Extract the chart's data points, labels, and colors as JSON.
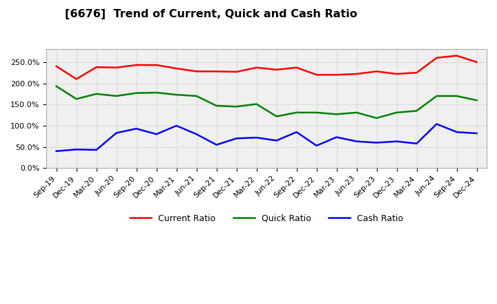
{
  "title": "[6676]  Trend of Current, Quick and Cash Ratio",
  "labels": [
    "Sep-19",
    "Dec-19",
    "Mar-20",
    "Jun-20",
    "Sep-20",
    "Dec-20",
    "Mar-21",
    "Jun-21",
    "Sep-21",
    "Dec-21",
    "Mar-22",
    "Jun-22",
    "Sep-22",
    "Dec-22",
    "Mar-23",
    "Jun-23",
    "Sep-23",
    "Dec-23",
    "Mar-24",
    "Jun-24",
    "Sep-24",
    "Dec-24"
  ],
  "current_ratio": [
    240,
    210,
    238,
    237,
    243,
    243,
    235,
    228,
    228,
    227,
    237,
    232,
    237,
    220,
    220,
    222,
    228,
    222,
    225,
    260,
    265,
    250
  ],
  "quick_ratio": [
    193,
    163,
    175,
    170,
    177,
    178,
    173,
    170,
    147,
    145,
    151,
    122,
    131,
    131,
    127,
    131,
    118,
    131,
    135,
    170,
    170,
    160
  ],
  "cash_ratio": [
    40,
    44,
    43,
    83,
    93,
    80,
    100,
    80,
    55,
    70,
    72,
    65,
    85,
    53,
    73,
    63,
    60,
    63,
    58,
    104,
    85,
    82
  ],
  "current_color": "#ff0000",
  "quick_color": "#008000",
  "cash_color": "#0000ff",
  "ylim": [
    0,
    280
  ],
  "yticks": [
    0,
    50,
    100,
    150,
    200,
    250
  ],
  "background_color": "#ffffff",
  "plot_bg_color": "#f0f0f0",
  "grid_color": "#bbbbbb",
  "legend_labels": [
    "Current Ratio",
    "Quick Ratio",
    "Cash Ratio"
  ],
  "line_width": 1.8
}
